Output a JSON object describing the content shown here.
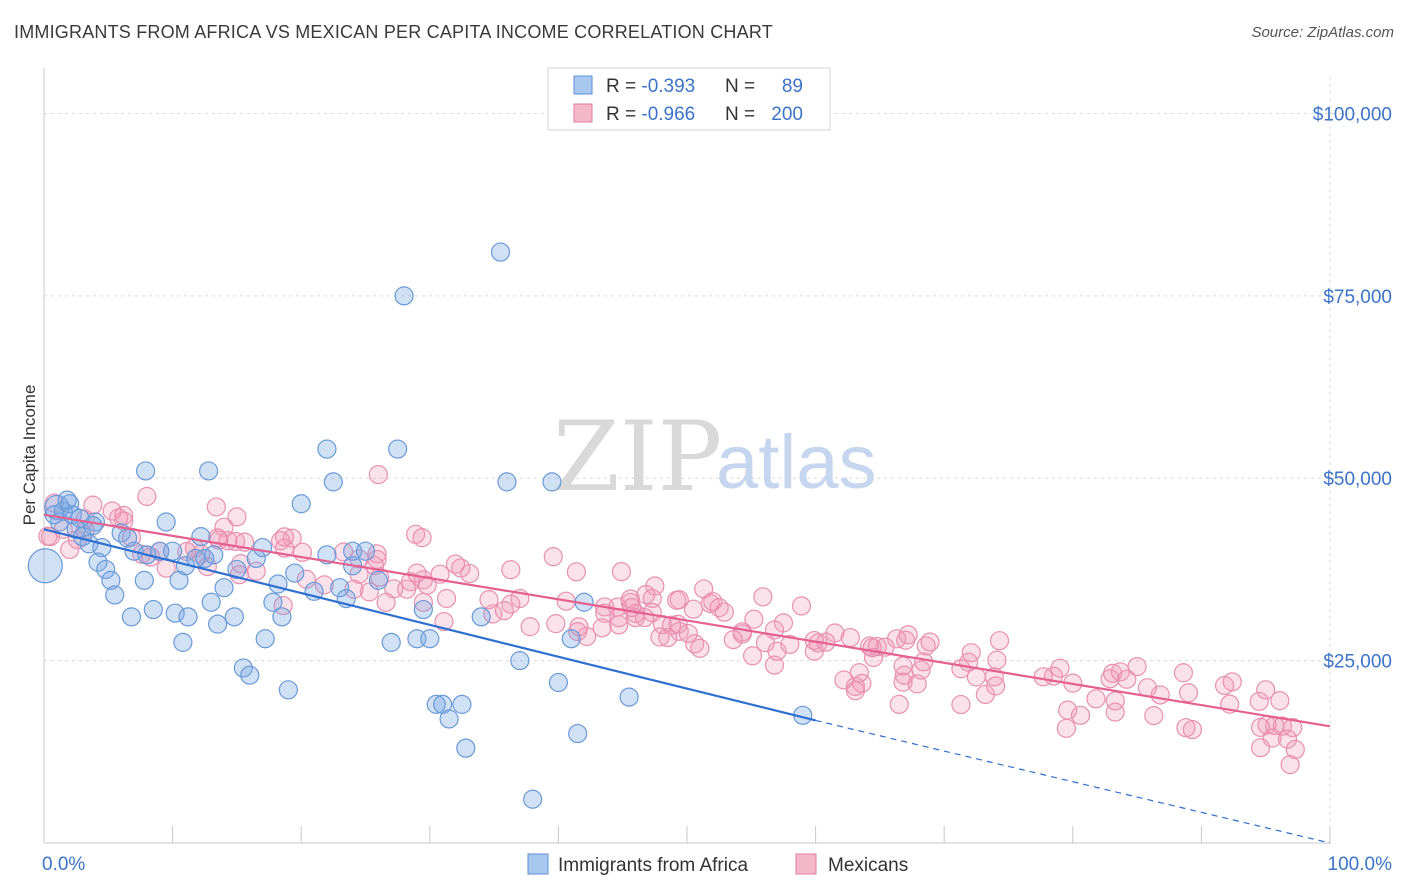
{
  "header": {
    "title": "IMMIGRANTS FROM AFRICA VS MEXICAN PER CAPITA INCOME CORRELATION CHART",
    "source": "Source: ZipAtlas.com"
  },
  "watermark": {
    "zip": "ZIP",
    "atlas": "atlas"
  },
  "legend": {
    "rows": [
      {
        "r_label": "R = ",
        "r_value": "-0.393",
        "n_label": "N = ",
        "n_value": "89",
        "color": "#a9c8f0",
        "stroke": "#5b8fd6"
      },
      {
        "r_label": "R = ",
        "r_value": "-0.966",
        "n_label": "N = ",
        "n_value": "200",
        "color": "#f5b8cb",
        "stroke": "#e07aa0"
      }
    ]
  },
  "colors": {
    "blue_fill": "rgba(120,165,225,0.35)",
    "blue_stroke": "#6a9ad8",
    "blue_line": "#2f6fd0",
    "pink_fill": "rgba(240,150,180,0.28)",
    "pink_stroke": "#e890b0",
    "pink_line": "#e4608f",
    "grid": "#d8d8d8",
    "axis_text": "#3c74c8"
  },
  "chart_data": {
    "type": "scatter",
    "title": "IMMIGRANTS FROM AFRICA VS MEXICAN PER CAPITA INCOME CORRELATION CHART",
    "xlabel": "",
    "ylabel": "Per Capita Income",
    "xlim": [
      0,
      100
    ],
    "ylim": [
      0,
      105000
    ],
    "x_tick_labels": [
      "0.0%",
      "100.0%"
    ],
    "y_ticks": [
      25000,
      50000,
      75000,
      100000
    ],
    "y_tick_labels": [
      "$25,000",
      "$50,000",
      "$75,000",
      "$100,000"
    ],
    "grid": true,
    "legend_position": "top-center",
    "series": [
      {
        "name": "Immigrants from Africa",
        "R": -0.393,
        "N": 89,
        "trend": {
          "x0": 0,
          "y0": 43000,
          "x1": 60,
          "y1": 16800,
          "dashed_to_x": 100,
          "dashed_to_y": 0
        },
        "points": [
          [
            0.1,
            38000,
            1
          ],
          [
            1,
            46000,
            0.6
          ],
          [
            1.5,
            45500,
            0.5
          ],
          [
            1.2,
            44000,
            0.5
          ],
          [
            2,
            46500,
            0.5
          ],
          [
            2.2,
            45000,
            0.5
          ],
          [
            2.5,
            43000,
            0.5
          ],
          [
            3,
            42000,
            0.5
          ],
          [
            3.5,
            41000,
            0.5
          ],
          [
            4,
            44000,
            0.5
          ],
          [
            4.5,
            40500,
            0.5
          ],
          [
            1.8,
            47000,
            0.5
          ],
          [
            0.8,
            45000,
            0.5
          ],
          [
            2.8,
            44500,
            0.5
          ],
          [
            3.8,
            43500,
            0.5
          ],
          [
            6,
            42500,
            0.5
          ],
          [
            6.5,
            41800,
            0.5
          ],
          [
            7,
            40000,
            0.5
          ],
          [
            4.2,
            38500,
            0.5
          ],
          [
            4.8,
            37500,
            0.5
          ],
          [
            5.2,
            36000,
            0.5
          ],
          [
            5.5,
            34000,
            0.5
          ],
          [
            6.8,
            31000,
            0.5
          ],
          [
            7.8,
            36000,
            0.5
          ],
          [
            8.5,
            32000,
            0.5
          ],
          [
            8,
            39500,
            0.5
          ],
          [
            9,
            40000,
            0.5
          ],
          [
            9.5,
            44000,
            0.5
          ],
          [
            10,
            40000,
            0.5
          ],
          [
            7.9,
            51000,
            0.5
          ],
          [
            10.5,
            36000,
            0.5
          ],
          [
            11,
            38000,
            0.5
          ],
          [
            10.2,
            31500,
            0.5
          ],
          [
            10.8,
            27500,
            0.5
          ],
          [
            11.2,
            31000,
            0.5
          ],
          [
            11.8,
            39000,
            0.5
          ],
          [
            12.5,
            39000,
            0.5
          ],
          [
            12.2,
            42000,
            0.5
          ],
          [
            13,
            33000,
            0.5
          ],
          [
            13.5,
            30000,
            0.5
          ],
          [
            13.2,
            39500,
            0.5
          ],
          [
            14,
            35000,
            0.5
          ],
          [
            12.8,
            51000,
            0.5
          ],
          [
            14.8,
            31000,
            0.5
          ],
          [
            15,
            37500,
            0.5
          ],
          [
            15.5,
            24000,
            0.5
          ],
          [
            16,
            23000,
            0.5
          ],
          [
            16.5,
            39000,
            0.5
          ],
          [
            17,
            40500,
            0.5
          ],
          [
            17.2,
            28000,
            0.5
          ],
          [
            17.8,
            33000,
            0.5
          ],
          [
            18.2,
            35500,
            0.5
          ],
          [
            18.5,
            31000,
            0.5
          ],
          [
            19,
            21000,
            0.5
          ],
          [
            19.5,
            37000,
            0.5
          ],
          [
            20,
            46500,
            0.5
          ],
          [
            21,
            34500,
            0.5
          ],
          [
            22,
            39500,
            0.5
          ],
          [
            22.5,
            49500,
            0.5
          ],
          [
            23,
            35000,
            0.5
          ],
          [
            23.5,
            33500,
            0.5
          ],
          [
            24,
            38000,
            0.5
          ],
          [
            24,
            40000,
            0.5
          ],
          [
            25,
            40000,
            0.5
          ],
          [
            27,
            27500,
            0.5
          ],
          [
            29,
            28000,
            0.5
          ],
          [
            29.5,
            32000,
            0.5
          ],
          [
            28,
            75000,
            0.5
          ],
          [
            22,
            54000,
            0.5
          ],
          [
            27.5,
            54000,
            0.5
          ],
          [
            30,
            28000,
            0.5
          ],
          [
            30.5,
            19000,
            0.5
          ],
          [
            31,
            19000,
            0.5
          ],
          [
            31.5,
            17000,
            0.5
          ],
          [
            32.8,
            13000,
            0.5
          ],
          [
            32.5,
            19000,
            0.5
          ],
          [
            35.5,
            81000,
            0.5
          ],
          [
            36,
            49500,
            0.5
          ],
          [
            37,
            25000,
            0.5
          ],
          [
            38,
            6000,
            0.5
          ],
          [
            39.5,
            49500,
            0.5
          ],
          [
            40,
            22000,
            0.5
          ],
          [
            41.5,
            15000,
            0.5
          ],
          [
            41,
            28000,
            0.5
          ],
          [
            42,
            33000,
            0.5
          ],
          [
            45.5,
            20000,
            0.5
          ],
          [
            59,
            17500,
            0.5
          ],
          [
            34,
            31000,
            0.5
          ],
          [
            26,
            36000,
            0.5
          ]
        ]
      },
      {
        "name": "Mexicans",
        "R": -0.966,
        "N": 200,
        "trend": {
          "x0": 0,
          "y0": 45000,
          "x1": 100,
          "y1": 16000
        },
        "points": []
      }
    ]
  },
  "bottom_legend": [
    {
      "label": "Immigrants from Africa",
      "color": "#a9c8f0",
      "stroke": "#5b8fd6"
    },
    {
      "label": "Mexicans",
      "color": "#f5b8cb",
      "stroke": "#e07aa0"
    }
  ]
}
